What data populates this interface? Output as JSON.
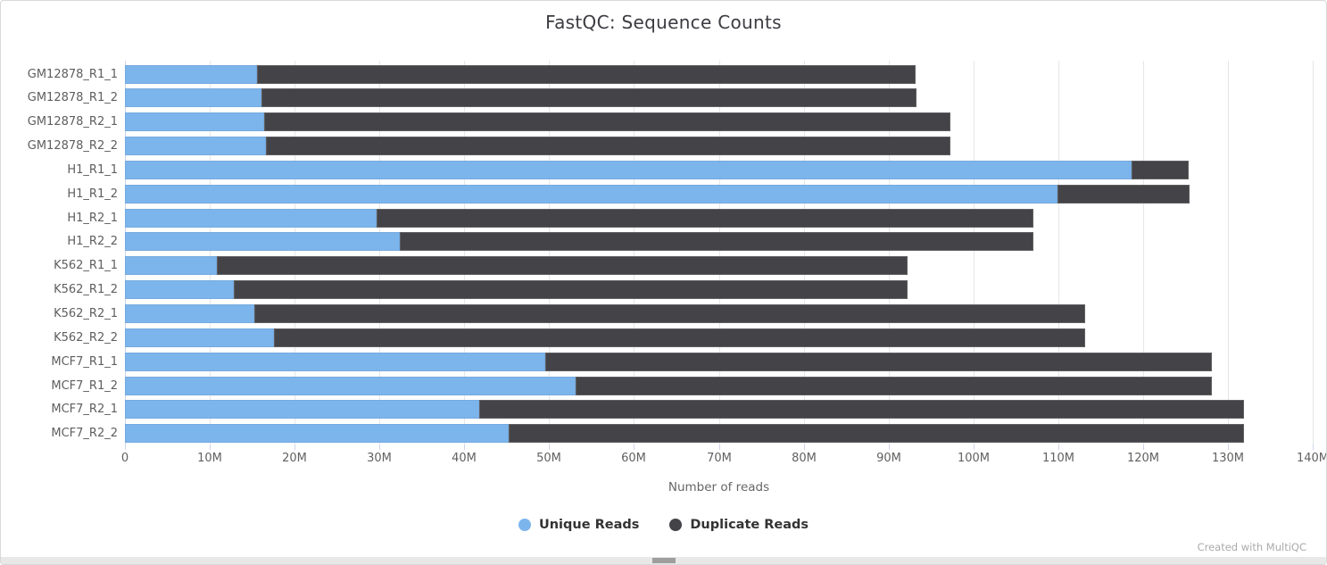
{
  "watermark_text": "Created with MultiQC",
  "colors": {
    "unique_reads": "#7cb5ec",
    "duplicate_reads": "#434348",
    "gridline": "#e6e6e6",
    "axis": "#ccd6eb",
    "title_text": "#3b3b42",
    "tick_text": "#616161",
    "legend_text": "#333333",
    "watermark_text": "#aaaaaa"
  },
  "chart_data": {
    "type": "bar",
    "orientation": "horizontal",
    "stacked": true,
    "grid": true,
    "legend_position": "bottom",
    "title": "FastQC: Sequence Counts",
    "xlabel": "Number of reads",
    "xlim_millions": [
      0,
      140
    ],
    "x_tick_values_millions": [
      0,
      10,
      20,
      30,
      40,
      50,
      60,
      70,
      80,
      90,
      100,
      110,
      120,
      130,
      140
    ],
    "x_tick_labels": [
      "0",
      "10M",
      "20M",
      "30M",
      "40M",
      "50M",
      "60M",
      "70M",
      "80M",
      "90M",
      "100M",
      "110M",
      "120M",
      "130M",
      "140M"
    ],
    "categories": [
      "GM12878_R1_1",
      "GM12878_R1_2",
      "GM12878_R2_1",
      "GM12878_R2_2",
      "H1_R1_1",
      "H1_R1_2",
      "H1_R2_1",
      "H1_R2_2",
      "K562_R1_1",
      "K562_R1_2",
      "K562_R2_1",
      "K562_R2_2",
      "MCF7_R1_1",
      "MCF7_R1_2",
      "MCF7_R2_1",
      "MCF7_R2_2"
    ],
    "series": [
      {
        "name": "Unique Reads",
        "color": "#7cb5ec",
        "values_millions": [
          15.6,
          16.1,
          16.4,
          16.6,
          118.6,
          109.9,
          29.7,
          32.4,
          10.8,
          12.8,
          15.3,
          17.6,
          49.5,
          53.1,
          41.8,
          45.2
        ]
      },
      {
        "name": "Duplicate Reads",
        "color": "#434348",
        "values_millions": [
          77.6,
          77.2,
          80.9,
          80.7,
          6.8,
          15.6,
          77.4,
          74.7,
          81.4,
          79.4,
          97.9,
          95.6,
          78.6,
          75.0,
          90.1,
          86.7
        ]
      }
    ]
  }
}
